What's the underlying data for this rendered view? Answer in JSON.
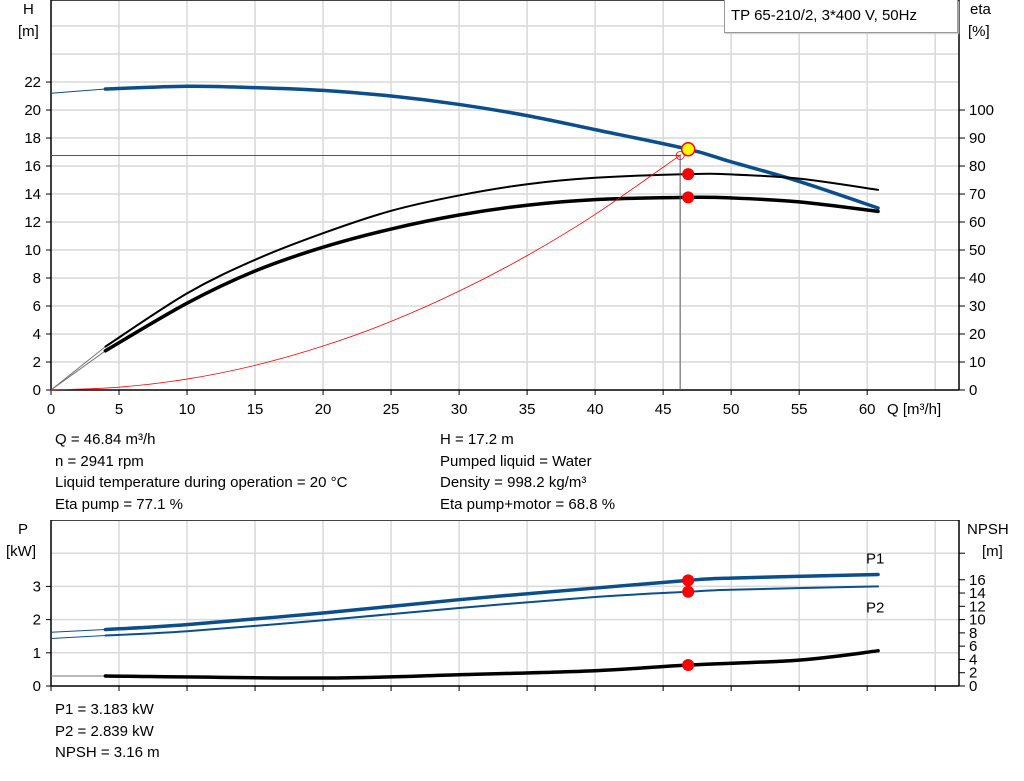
{
  "title": "TP 65-210/2, 3*400 V, 50Hz",
  "info_left": [
    "Q = 46.84 m³/h",
    "n = 2941 rpm",
    "Liquid temperature during operation = 20 °C",
    "Eta pump = 77.1 %"
  ],
  "info_right": [
    "H = 17.2 m",
    "Pumped liquid = Water",
    "Density = 998.2 kg/m³",
    "Eta pump+motor = 68.8 %"
  ],
  "info_bottom": [
    "P1 = 3.183 kW",
    "P2 = 2.839 kW",
    "NPSH = 3.16 m"
  ],
  "colors": {
    "pump_curve": "#0a4f8c",
    "efficiency": "#000000",
    "system_curve": "#ff0000",
    "duty_marker": "#ff0000",
    "operating_point": "#ffff00",
    "grid": "#d9d9d9"
  },
  "chart_data": [
    {
      "type": "line",
      "x_label": "Q [m³/h]",
      "y_label_left": [
        "H",
        "[m]"
      ],
      "y_label_right": [
        "eta",
        "[%]"
      ],
      "xlim": [
        0,
        66.75
      ],
      "ylim_left": [
        0,
        27.86
      ],
      "ylim_right": [
        0,
        139.3
      ],
      "x_ticks": [
        0,
        5,
        10,
        15,
        20,
        25,
        30,
        35,
        40,
        45,
        50,
        55,
        60
      ],
      "y_ticks_left": [
        0,
        2,
        4,
        6,
        8,
        10,
        12,
        14,
        16,
        18,
        20,
        22
      ],
      "y_ticks_right": [
        0,
        10,
        20,
        30,
        40,
        50,
        60,
        70,
        80,
        90,
        100
      ],
      "grid": true,
      "series": [
        {
          "key": "H",
          "axis": "left",
          "x": [
            4,
            10,
            15,
            20,
            25,
            30,
            35,
            40,
            46.84,
            50,
            55,
            60.8
          ],
          "y": [
            21.5,
            21.7,
            21.6,
            21.4,
            21.0,
            20.4,
            19.6,
            18.6,
            17.2,
            16.3,
            14.9,
            13.0
          ],
          "extension": {
            "x": [
              0,
              4
            ],
            "y": [
              21.2,
              21.5
            ]
          }
        },
        {
          "key": "eta_pump",
          "axis": "right",
          "x": [
            4,
            10,
            15,
            20,
            25,
            30,
            35,
            40,
            46.84,
            50,
            55,
            60.8
          ],
          "y": [
            15.5,
            34.5,
            46.5,
            56,
            64,
            69.5,
            73.5,
            75.8,
            77.1,
            77,
            75.5,
            71.5
          ],
          "extension": {
            "x": [
              0,
              4
            ],
            "y": [
              0,
              15.5
            ]
          }
        },
        {
          "key": "eta_pump_motor",
          "axis": "right",
          "x": [
            4,
            10,
            15,
            20,
            25,
            30,
            35,
            40,
            46.84,
            50,
            55,
            60.8
          ],
          "y": [
            14,
            31,
            42.5,
            51,
            57.5,
            62.5,
            66,
            68,
            68.8,
            68.6,
            67.2,
            63.8
          ],
          "extension": {
            "x": [
              0,
              4
            ],
            "y": [
              0,
              14
            ]
          }
        },
        {
          "key": "system",
          "axis": "left",
          "x": [
            0,
            5,
            10,
            15,
            20,
            25,
            30,
            35,
            40,
            46.3
          ],
          "y": [
            0,
            0.2,
            0.78,
            1.76,
            3.14,
            4.9,
            7.06,
            9.6,
            12.54,
            16.8
          ]
        }
      ],
      "operating_point": {
        "Q": 46.84,
        "H": 17.2,
        "eta_pump": 77.1,
        "eta_pump_motor": 68.8
      },
      "duty_point": {
        "Q": 46.25,
        "H": 16.75
      }
    },
    {
      "type": "line",
      "y_label_left": [
        "P",
        "[kW]"
      ],
      "y_label_right": [
        "NPSH",
        "[m]"
      ],
      "xlim": [
        0,
        66.75
      ],
      "ylim_left": [
        0,
        5
      ],
      "ylim_right": [
        0,
        25
      ],
      "x_ticks": [
        0,
        5,
        10,
        15,
        20,
        25,
        30,
        35,
        40,
        45,
        50,
        55,
        60,
        65
      ],
      "y_ticks_left": [
        0,
        1,
        2,
        3
      ],
      "y_ticks_right": [
        0,
        2,
        4,
        6,
        8,
        10,
        12,
        14,
        16
      ],
      "grid": true,
      "series": [
        {
          "key": "P1",
          "name": "P1",
          "axis": "left",
          "x": [
            4,
            10,
            20,
            30,
            40,
            46.84,
            50,
            60.8
          ],
          "y": [
            1.7,
            1.85,
            2.2,
            2.6,
            2.95,
            3.183,
            3.25,
            3.36
          ],
          "extension": {
            "x": [
              0,
              4
            ],
            "y": [
              1.62,
              1.7
            ]
          }
        },
        {
          "key": "P2",
          "name": "P2",
          "axis": "left",
          "x": [
            4,
            10,
            20,
            30,
            40,
            46.84,
            50,
            60.8
          ],
          "y": [
            1.52,
            1.65,
            1.98,
            2.35,
            2.68,
            2.839,
            2.9,
            3.0
          ],
          "extension": {
            "x": [
              0,
              4
            ],
            "y": [
              1.43,
              1.52
            ]
          }
        },
        {
          "key": "NPSH",
          "axis": "right",
          "x": [
            4,
            20,
            30,
            40,
            46.84,
            55,
            60.8
          ],
          "y": [
            1.5,
            1.2,
            1.7,
            2.3,
            3.16,
            3.9,
            5.3
          ],
          "extension": {
            "x": [
              0,
              4
            ],
            "y": [
              1.5,
              1.5
            ]
          }
        }
      ],
      "operating_point": {
        "Q": 46.84,
        "P1": 3.183,
        "P2": 2.839,
        "NPSH": 3.16
      }
    }
  ]
}
